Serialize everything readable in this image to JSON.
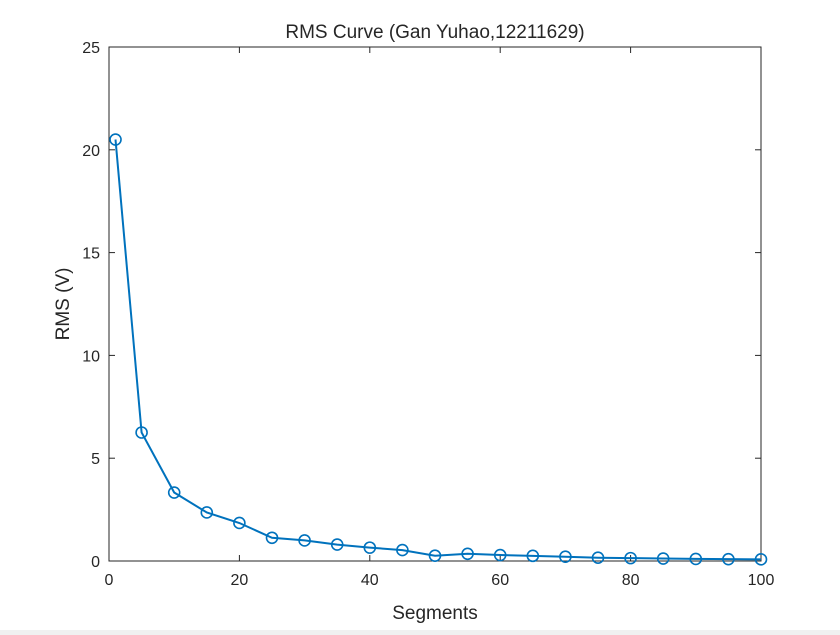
{
  "chart_data": {
    "type": "line",
    "title": "RMS Curve (Gan Yuhao,12211629)",
    "xlabel": "Segments",
    "ylabel": "RMS (V)",
    "xlim": [
      0,
      100
    ],
    "ylim": [
      0,
      25
    ],
    "xticks": [
      0,
      20,
      40,
      60,
      80,
      100
    ],
    "yticks": [
      0,
      5,
      10,
      15,
      20,
      25
    ],
    "grid": false,
    "line_color": "#0072BD",
    "marker": "circle",
    "series": [
      {
        "x": [
          1,
          5,
          10,
          15,
          20,
          25,
          30,
          35,
          40,
          45,
          50,
          55,
          60,
          65,
          70,
          75,
          80,
          85,
          90,
          95,
          100
        ],
        "y": [
          20.5,
          6.25,
          3.33,
          2.36,
          1.85,
          1.13,
          1.0,
          0.8,
          0.65,
          0.53,
          0.26,
          0.35,
          0.29,
          0.25,
          0.21,
          0.16,
          0.14,
          0.12,
          0.1,
          0.09,
          0.08
        ]
      }
    ]
  }
}
